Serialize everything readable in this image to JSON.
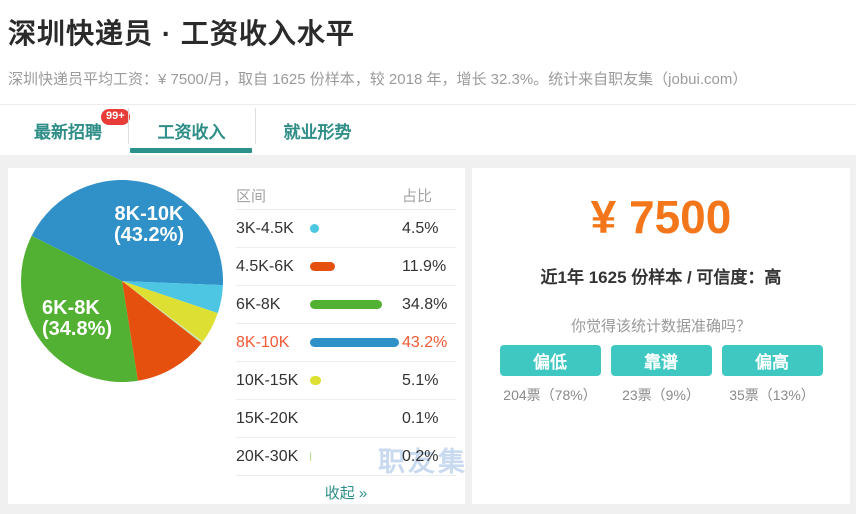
{
  "header": {
    "title": "深圳快递员 · 工资收入水平",
    "subtitle": "深圳快递员平均工资：¥ 7500/月，取自 1625 份样本，较 2018 年，增长 32.3%。统计来自职友集（jobui.com）"
  },
  "tabs": [
    {
      "label": "最新招聘",
      "badge": "99+",
      "active": false
    },
    {
      "label": "工资收入",
      "badge": null,
      "active": true
    },
    {
      "label": "就业形势",
      "badge": null,
      "active": false
    }
  ],
  "chart_data": {
    "type": "pie",
    "categories": [
      "3K-4.5K",
      "4.5K-6K",
      "6K-8K",
      "8K-10K",
      "10K-15K",
      "15K-20K",
      "20K-30K"
    ],
    "values": [
      4.5,
      11.9,
      34.8,
      43.2,
      5.1,
      0.1,
      0.2
    ],
    "colors": [
      "#4cc6e3",
      "#e6500f",
      "#52b132",
      "#3090c8",
      "#dde032",
      "#e0e0e0",
      "#b5e08c"
    ],
    "highlight_index": 3,
    "pie_labels": [
      {
        "line1": "8K-10K",
        "line2": "(43.2%)"
      },
      {
        "line1": "6K-8K",
        "line2": "(34.8%)"
      }
    ],
    "legend_position": "right-table",
    "grid": false
  },
  "table": {
    "headers": [
      "区间",
      "占比"
    ],
    "collapse_label": "收起 »"
  },
  "watermark": "职友集",
  "summary": {
    "salary": "¥ 7500",
    "sample_line": "近1年 1625 份样本 / 可信度：高",
    "question": "你觉得该统计数据准确吗？",
    "votes": [
      {
        "label": "偏低",
        "count": "204票（78%）"
      },
      {
        "label": "靠谱",
        "count": "23票（9%）"
      },
      {
        "label": "偏高",
        "count": "35票（13%）"
      }
    ]
  }
}
